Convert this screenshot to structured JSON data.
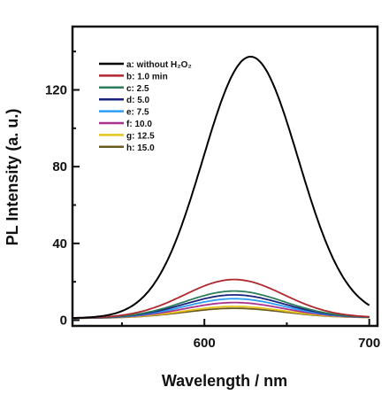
{
  "chart_data": {
    "type": "line",
    "xlabel": "Wavelength / nm",
    "ylabel": "PL  Intensity (a. u.)",
    "xlim": [
      520,
      705
    ],
    "ylim": [
      -3,
      153
    ],
    "x_ticks": [
      600,
      700
    ],
    "x_tick_labels": [
      "600",
      "700"
    ],
    "y_ticks": [
      0,
      40,
      80,
      120
    ],
    "y_tick_labels": [
      "0",
      "40",
      "80",
      "120"
    ],
    "grid": false,
    "legend_position": "top-left",
    "series": [
      {
        "id": "a",
        "label": "a: without H₂O₂",
        "color": "#000000",
        "peak": 136,
        "center": 628,
        "sigma": 29,
        "baseline": 1.0
      },
      {
        "id": "b",
        "label": "b: 1.0 min",
        "color": "#b0282e",
        "peak": 20,
        "center": 618,
        "sigma": 30,
        "baseline": 1.0
      },
      {
        "id": "c",
        "label": "c: 2.5",
        "color": "#2e7d5b",
        "peak": 14,
        "center": 618,
        "sigma": 30,
        "baseline": 1.0
      },
      {
        "id": "d",
        "label": "d: 5.0",
        "color": "#1a237e",
        "peak": 12,
        "center": 618,
        "sigma": 30,
        "baseline": 1.0
      },
      {
        "id": "e",
        "label": "e: 7.5",
        "color": "#2a9df4",
        "peak": 10,
        "center": 618,
        "sigma": 30,
        "baseline": 1.0
      },
      {
        "id": "f",
        "label": "f: 10.0",
        "color": "#a8338f",
        "peak": 8,
        "center": 618,
        "sigma": 30,
        "baseline": 1.0
      },
      {
        "id": "g",
        "label": "g: 12.5",
        "color": "#e6c61c",
        "peak": 6,
        "center": 618,
        "sigma": 30,
        "baseline": 1.0
      },
      {
        "id": "h",
        "label": "h: 15.0",
        "color": "#6b5a1e",
        "peak": 5,
        "center": 618,
        "sigma": 30,
        "baseline": 1.0
      }
    ]
  }
}
